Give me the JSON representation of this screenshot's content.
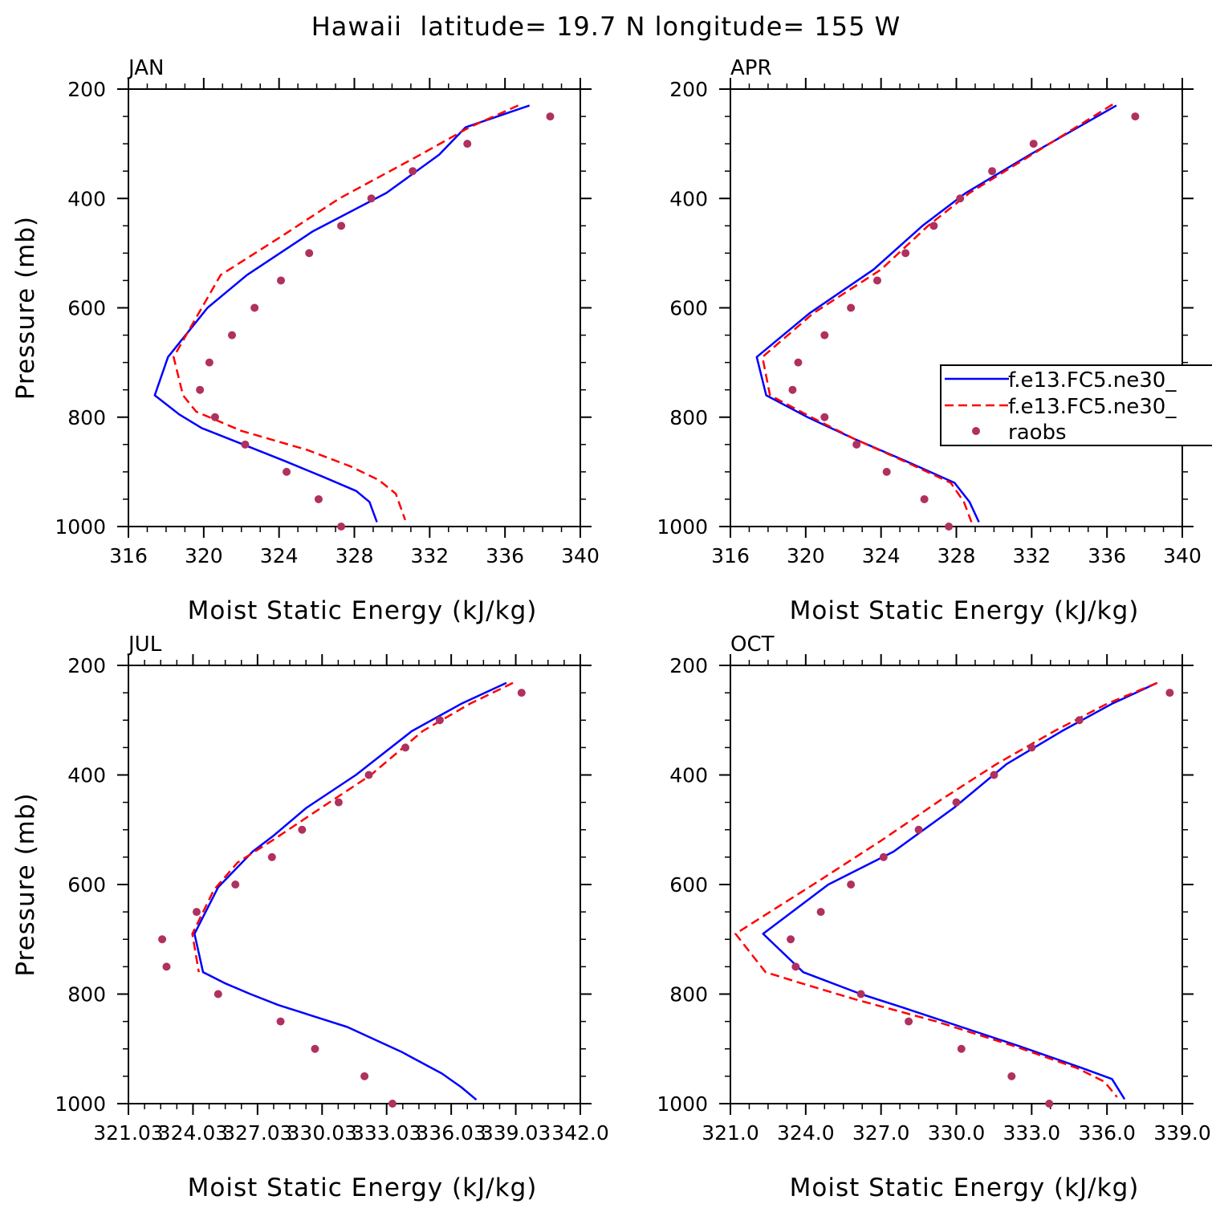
{
  "figure": {
    "title": "Hawaii  latitude= 19.7 N longitude= 155 W"
  },
  "colors": {
    "model_a": "#0000ff",
    "model_b": "#ff0000",
    "raobs": "#b03060",
    "axes": "#000000"
  },
  "chart_data": [
    {
      "type": "line",
      "panel": "JAN",
      "xlabel": "Moist Static Energy (kJ/kg)",
      "ylabel": "Pressure (mb)",
      "xlim": [
        316,
        340
      ],
      "ylim": [
        1000,
        200
      ],
      "y_inverted": true,
      "xticks": [
        316,
        320,
        324,
        328,
        332,
        336,
        340
      ],
      "xtick_labels": [
        "316",
        "320",
        "324",
        "328",
        "332",
        "336",
        "340"
      ],
      "yticks": [
        200,
        400,
        600,
        800,
        1000
      ],
      "series": [
        {
          "style": "solid",
          "color": "#0000ff",
          "x": [
            337.3,
            333.9,
            332.5,
            329.7,
            325.8,
            322.3,
            320.2,
            318.1,
            317.4,
            318.7,
            319.9,
            322.1,
            324.3,
            326.4,
            328.1,
            328.8,
            329.2
          ],
          "y": [
            230,
            270,
            320,
            390,
            460,
            540,
            600,
            690,
            760,
            795,
            820,
            850,
            880,
            910,
            935,
            955,
            992
          ]
        },
        {
          "style": "dashed",
          "color": "#ff0000",
          "x": [
            336.7,
            334.1,
            331.5,
            327.2,
            324.1,
            320.9,
            318.4,
            318.9,
            319.6,
            322.0,
            325.5,
            327.8,
            329.3,
            330.2,
            330.7
          ],
          "y": [
            230,
            270,
            320,
            400,
            470,
            540,
            690,
            760,
            790,
            825,
            860,
            890,
            915,
            940,
            988
          ]
        },
        {
          "style": "markers",
          "color": "#b03060",
          "name": "raobs",
          "x": [
            338.4,
            334.0,
            331.1,
            328.9,
            327.3,
            325.6,
            324.1,
            322.7,
            321.5,
            320.3,
            319.8,
            320.6,
            322.2,
            324.4,
            326.1,
            327.3
          ],
          "y": [
            250,
            300,
            350,
            400,
            450,
            500,
            550,
            600,
            650,
            700,
            750,
            800,
            850,
            900,
            950,
            1000
          ]
        }
      ]
    },
    {
      "type": "line",
      "panel": "APR",
      "xlabel": "Moist Static Energy (kJ/kg)",
      "ylabel": "",
      "xlim": [
        316,
        340
      ],
      "ylim": [
        1000,
        200
      ],
      "y_inverted": true,
      "xticks": [
        316,
        320,
        324,
        328,
        332,
        336,
        340
      ],
      "xtick_labels": [
        "316",
        "320",
        "324",
        "328",
        "332",
        "336",
        "340"
      ],
      "yticks": [
        200,
        400,
        600,
        800,
        1000
      ],
      "series": [
        {
          "style": "solid",
          "color": "#0000ff",
          "x": [
            336.5,
            331.9,
            328.5,
            326.2,
            323.6,
            320.2,
            317.4,
            317.9,
            320.1,
            322.6,
            325.3,
            327.9,
            328.7,
            329.2
          ],
          "y": [
            230,
            320,
            390,
            450,
            530,
            610,
            690,
            760,
            800,
            840,
            880,
            920,
            955,
            992
          ]
        },
        {
          "style": "dashed",
          "color": "#ff0000",
          "x": [
            336.3,
            332.1,
            328.7,
            326.5,
            324.0,
            320.4,
            317.7,
            318.1,
            320.3,
            322.6,
            325.2,
            327.7,
            328.4,
            328.8
          ],
          "y": [
            228,
            318,
            390,
            450,
            530,
            610,
            690,
            760,
            800,
            840,
            880,
            920,
            955,
            992
          ]
        },
        {
          "style": "markers",
          "color": "#b03060",
          "name": "raobs",
          "x": [
            337.5,
            332.1,
            329.9,
            328.2,
            326.8,
            325.3,
            323.8,
            322.4,
            321.0,
            319.6,
            319.3,
            321.0,
            322.7,
            324.3,
            326.3,
            327.6
          ],
          "y": [
            250,
            300,
            350,
            400,
            450,
            500,
            550,
            600,
            650,
            700,
            750,
            800,
            850,
            900,
            950,
            1000
          ]
        }
      ]
    },
    {
      "type": "line",
      "panel": "JUL",
      "xlabel": "Moist Static Energy (kJ/kg)",
      "ylabel": "Pressure (mb)",
      "xlim": [
        321.03,
        342.03
      ],
      "ylim": [
        1000,
        200
      ],
      "y_inverted": true,
      "xticks": [
        321.03,
        324.03,
        327.03,
        330.03,
        333.03,
        336.03,
        339.03,
        342.03
      ],
      "xtick_labels": [
        "321.03",
        "324.03",
        "327.03",
        "330.03",
        "333.03",
        "336.03",
        "339.03",
        "342.0"
      ],
      "yticks": [
        200,
        400,
        600,
        800,
        1000
      ],
      "series": [
        {
          "style": "solid",
          "color": "#0000ff",
          "x": [
            338.6,
            336.5,
            334.2,
            331.6,
            329.3,
            327.8,
            326.8,
            325.2,
            324.1,
            324.5,
            325.5,
            326.7,
            328.0,
            331.2,
            333.7,
            335.6,
            336.5,
            337.2
          ],
          "y": [
            232,
            270,
            320,
            400,
            460,
            510,
            540,
            605,
            690,
            760,
            780,
            800,
            820,
            860,
            905,
            945,
            970,
            993
          ]
        },
        {
          "style": "dashed",
          "color": "#ff0000",
          "x": [
            338.9,
            336.9,
            334.7,
            332.3,
            329.6,
            327.7,
            326.1,
            325.0,
            324.0,
            324.3
          ],
          "y": [
            232,
            270,
            320,
            400,
            470,
            520,
            560,
            610,
            690,
            760
          ]
        },
        {
          "style": "markers",
          "color": "#b03060",
          "name": "raobs",
          "x": [
            339.3,
            335.5,
            333.9,
            332.2,
            330.8,
            329.1,
            327.7,
            326.0,
            324.2,
            322.6,
            322.8,
            325.2,
            328.1,
            329.7,
            332.0,
            333.3
          ],
          "y": [
            250,
            300,
            350,
            400,
            450,
            500,
            550,
            600,
            650,
            700,
            750,
            800,
            850,
            900,
            950,
            1000
          ]
        }
      ]
    },
    {
      "type": "line",
      "panel": "OCT",
      "xlabel": "Moist Static Energy (kJ/kg)",
      "ylabel": "",
      "xlim": [
        321.0,
        339.0
      ],
      "ylim": [
        1000,
        200
      ],
      "y_inverted": true,
      "xticks": [
        321,
        324,
        327,
        330,
        333,
        336,
        339
      ],
      "xtick_labels": [
        "321.0",
        "324.0",
        "327.0",
        "330.0",
        "333.0",
        "336.0",
        "339.0"
      ],
      "yticks": [
        200,
        400,
        600,
        800,
        1000
      ],
      "series": [
        {
          "style": "solid",
          "color": "#0000ff",
          "x": [
            338.0,
            336.2,
            334.2,
            332.0,
            329.9,
            327.5,
            324.9,
            322.3,
            323.9,
            326.2,
            327.9,
            330.2,
            332.5,
            335.0,
            336.2,
            336.7
          ],
          "y": [
            232,
            270,
            320,
            380,
            460,
            540,
            600,
            690,
            760,
            800,
            825,
            860,
            895,
            935,
            955,
            992
          ]
        },
        {
          "style": "dashed",
          "color": "#ff0000",
          "x": [
            338.0,
            336.0,
            333.9,
            331.6,
            329.4,
            327.0,
            324.3,
            321.2,
            322.4,
            323.8,
            326.0,
            329.2,
            332.3,
            334.8,
            335.9,
            336.4
          ],
          "y": [
            232,
            270,
            320,
            380,
            445,
            520,
            600,
            690,
            760,
            780,
            810,
            850,
            895,
            935,
            960,
            988
          ]
        },
        {
          "style": "markers",
          "color": "#b03060",
          "name": "raobs",
          "x": [
            338.5,
            334.9,
            333.0,
            331.5,
            330.0,
            328.5,
            327.1,
            325.8,
            324.6,
            323.4,
            323.6,
            326.2,
            328.1,
            330.2,
            332.2,
            333.7
          ],
          "y": [
            250,
            300,
            350,
            400,
            450,
            500,
            550,
            600,
            650,
            700,
            750,
            800,
            850,
            900,
            950,
            1000
          ]
        }
      ]
    }
  ],
  "legend": {
    "placement": "right-middle of APR panel",
    "entries": [
      {
        "label": "f.e13.FC5.ne30_",
        "style": "solid",
        "color": "#0000ff"
      },
      {
        "label": "f.e13.FC5.ne30_",
        "style": "dashed",
        "color": "#ff0000"
      },
      {
        "label": "raobs",
        "style": "markers",
        "color": "#b03060"
      }
    ]
  }
}
